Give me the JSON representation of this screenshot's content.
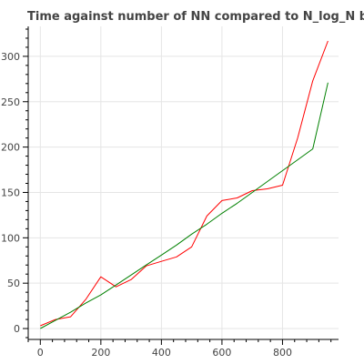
{
  "chart_data": {
    "type": "line",
    "title": "Time against number of NN compared to N_log_N behaviour",
    "xlabel": "",
    "ylabel": "",
    "xlim": [
      -40,
      985
    ],
    "ylim": [
      -12,
      333
    ],
    "grid": true,
    "x_ticks": [
      0,
      200,
      400,
      600,
      800
    ],
    "y_ticks": [
      0,
      50,
      100,
      150,
      200,
      250,
      300
    ],
    "series": [
      {
        "color": "#ff0000",
        "x": [
          0,
          50,
          100,
          150,
          200,
          250,
          300,
          350,
          400,
          450,
          500,
          550,
          600,
          650,
          700,
          750,
          800,
          850,
          900,
          950
        ],
        "y": [
          3,
          10,
          13,
          32,
          57,
          46,
          54,
          69,
          74,
          79,
          90,
          124,
          141,
          144,
          152,
          154,
          158,
          210,
          273,
          317
        ]
      },
      {
        "color": "#008000",
        "x": [
          0,
          50,
          100,
          150,
          200,
          250,
          300,
          350,
          400,
          450,
          500,
          550,
          600,
          650,
          700,
          750,
          800,
          850,
          900,
          950
        ],
        "y": [
          0,
          9,
          18,
          28,
          37,
          48,
          59,
          70,
          81,
          92,
          104,
          115,
          127,
          138,
          150,
          162,
          174,
          186,
          198,
          271
        ]
      }
    ]
  }
}
